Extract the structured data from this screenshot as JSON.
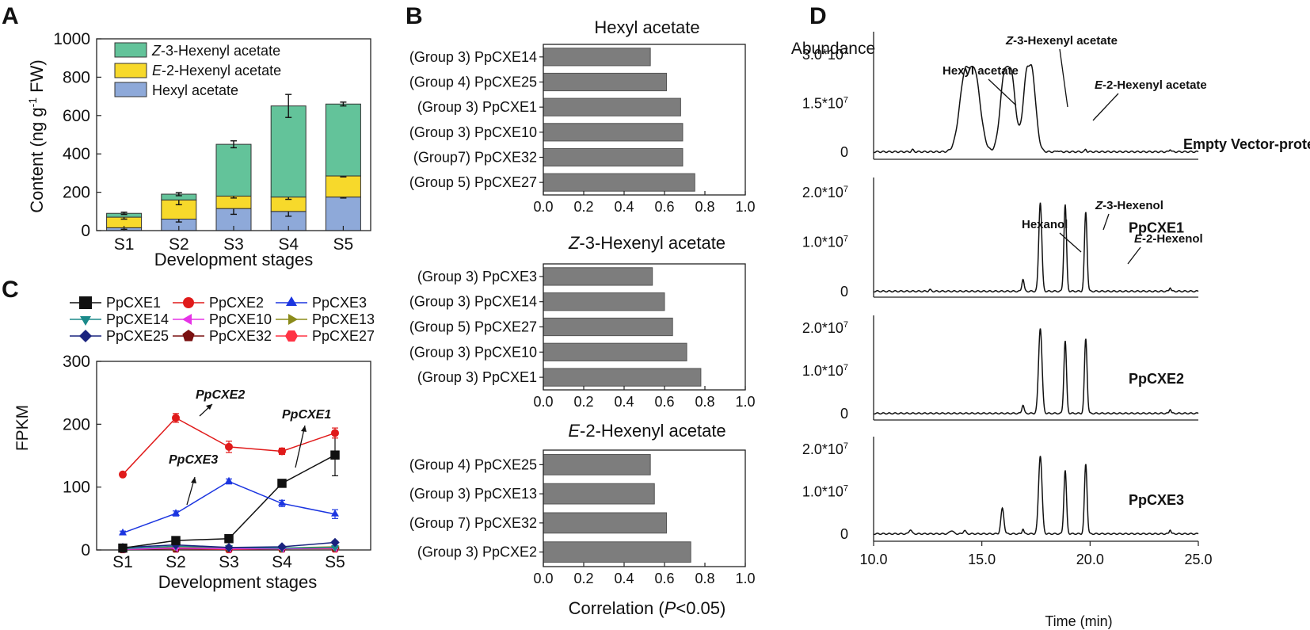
{
  "colors": {
    "z3": "#63c39a",
    "e2": "#f7d92b",
    "hexyl": "#8ea9d9",
    "bar_gray": "#7d7d7d"
  },
  "panels": {
    "A": "A",
    "B": "B",
    "C": "C",
    "D": "D"
  },
  "chart_data": [
    {
      "id": "A",
      "type": "bar",
      "stacked": true,
      "categories": [
        "S1",
        "S2",
        "S3",
        "S4",
        "S5"
      ],
      "series": [
        {
          "name": "Hexyl acetate",
          "values": [
            15,
            60,
            115,
            100,
            175
          ],
          "errors": [
            8,
            15,
            30,
            25,
            5
          ]
        },
        {
          "name": "E-2-Hexenyl acetate",
          "values": [
            55,
            100,
            65,
            75,
            110
          ],
          "errors": [
            10,
            25,
            10,
            12,
            5
          ]
        },
        {
          "name": "Z-3-Hexenyl acetate",
          "values": [
            20,
            30,
            270,
            475,
            375
          ],
          "errors": [
            6,
            8,
            18,
            60,
            10
          ]
        }
      ],
      "legend": [
        {
          "prefix": "Z",
          "rest": "-3-Hexenyl acetate"
        },
        {
          "prefix": "E",
          "rest": "-2-Hexenyl acetate"
        },
        {
          "prefix": "",
          "rest": "Hexyl acetate"
        }
      ],
      "xlabel": "Development stages",
      "ylabel_pre": "Content (ng g",
      "ylabel_sup": "-1",
      "ylabel_post": " FW)",
      "ylim": [
        0,
        1000
      ],
      "yticks": [
        "0",
        "200",
        "400",
        "600",
        "800",
        "1000"
      ]
    },
    {
      "id": "B",
      "type": "bar",
      "orientation": "horizontal",
      "xlabel_pre": "Correlation (",
      "xlabel_it": "P",
      "xlabel_post": "<0.05)",
      "xticks": [
        "0.0",
        "0.2",
        "0.4",
        "0.6",
        "0.8",
        "1.0"
      ],
      "xlim": [
        0,
        1
      ],
      "subplots": [
        {
          "title_it": "",
          "title": "Hexyl acetate",
          "categories": [
            "(Group 3) PpCXE14",
            "(Group 4) PpCXE25",
            "(Group 3) PpCXE1",
            "(Group 3) PpCXE10",
            "(Group7) PpCXE32",
            "(Group 5) PpCXE27"
          ],
          "values": [
            0.53,
            0.61,
            0.68,
            0.69,
            0.69,
            0.75
          ]
        },
        {
          "title_it": "Z",
          "title": "-3-Hexenyl acetate",
          "categories": [
            "(Group 3) PpCXE3",
            "(Group 3) PpCXE14",
            "(Group 5) PpCXE27",
            "(Group 3) PpCXE10",
            "(Group 3) PpCXE1"
          ],
          "values": [
            0.54,
            0.6,
            0.64,
            0.71,
            0.78
          ]
        },
        {
          "title_it": "E",
          "title": "-2-Hexenyl acetate",
          "categories": [
            "(Group 4) PpCXE25",
            "(Group 3) PpCXE13",
            "(Group 7) PpCXE32",
            "(Group 3) PpCXE2"
          ],
          "values": [
            0.53,
            0.55,
            0.61,
            0.73
          ]
        }
      ]
    },
    {
      "id": "C",
      "type": "line",
      "categories": [
        "S1",
        "S2",
        "S3",
        "S4",
        "S5"
      ],
      "ylabel": "FPKM",
      "xlabel": "Development stages",
      "ylim": [
        0,
        300
      ],
      "yticks": [
        "0",
        "100",
        "200",
        "300"
      ],
      "series": [
        {
          "name": "PpCXE1",
          "color": "#111111",
          "marker": "square",
          "values": [
            3,
            15,
            18,
            106,
            151
          ],
          "errors": [
            1,
            2,
            2,
            3,
            33
          ]
        },
        {
          "name": "PpCXE2",
          "color": "#e01a1a",
          "marker": "circle",
          "values": [
            120,
            210,
            164,
            157,
            186
          ],
          "errors": [
            2,
            7,
            9,
            5,
            8
          ]
        },
        {
          "name": "PpCXE3",
          "color": "#1b35e0",
          "marker": "triangle-up",
          "values": [
            27,
            58,
            109,
            74,
            57
          ],
          "errors": [
            3,
            4,
            4,
            5,
            7
          ]
        },
        {
          "name": "PpCXE14",
          "color": "#1b8a8a",
          "marker": "triangle-down",
          "values": [
            2,
            6,
            4,
            3,
            4
          ],
          "errors": [
            1,
            1,
            1,
            1,
            1
          ]
        },
        {
          "name": "PpCXE10",
          "color": "#e633e6",
          "marker": "triangle-left",
          "values": [
            1,
            3,
            2,
            2,
            3
          ],
          "errors": [
            1,
            1,
            1,
            1,
            1
          ]
        },
        {
          "name": "PpCXE13",
          "color": "#8b8b1a",
          "marker": "triangle-right",
          "values": [
            2,
            4,
            3,
            3,
            5
          ],
          "errors": [
            1,
            1,
            1,
            1,
            1
          ]
        },
        {
          "name": "PpCXE25",
          "color": "#1a237e",
          "marker": "diamond",
          "values": [
            4,
            8,
            4,
            5,
            12
          ],
          "errors": [
            1,
            1,
            1,
            1,
            2
          ]
        },
        {
          "name": "PpCXE32",
          "color": "#7a1010",
          "marker": "pentagon",
          "values": [
            1,
            2,
            2,
            2,
            3
          ],
          "errors": [
            1,
            1,
            1,
            1,
            1
          ]
        },
        {
          "name": "PpCXE27",
          "color": "#ff3344",
          "marker": "hexagon",
          "values": [
            1,
            2,
            1,
            2,
            2
          ],
          "errors": [
            1,
            1,
            1,
            1,
            1
          ]
        }
      ],
      "annotations": [
        "PpCXE2",
        "PpCXE1",
        "PpCXE3"
      ]
    },
    {
      "id": "D",
      "type": "line",
      "subtype": "chromatogram",
      "ylabel": "Abundance",
      "xlabel": "Time (min)",
      "xlim": [
        10,
        25
      ],
      "xticks": [
        "10.0",
        "15.0",
        "20.0",
        "25.0"
      ],
      "exp": "7",
      "traces": [
        {
          "name": "Empty Vector-protein",
          "yticks": [
            {
              "v": 0,
              "base": "0",
              "exp": ""
            },
            {
              "v": 1.5,
              "base": "1.5*10",
              "exp": "7"
            },
            {
              "v": 3.0,
              "base": "3.0*10",
              "exp": "7"
            }
          ],
          "ymax": 3.7,
          "peaks": [
            {
              "t": 11.8,
              "h": 0.06,
              "w": 0.05,
              "flat": 0
            },
            {
              "t": 14.45,
              "h": 2.6,
              "w": 0.28,
              "flat": 0.35
            },
            {
              "t": 16.2,
              "h": 2.6,
              "w": 0.22,
              "flat": 0.22
            },
            {
              "t": 17.2,
              "h": 2.65,
              "w": 0.2,
              "flat": 0.15
            },
            {
              "t": 18.5,
              "h": 0.04,
              "w": 0.04,
              "flat": 0
            },
            {
              "t": 19.8,
              "h": 0.07,
              "w": 0.04,
              "flat": 0
            },
            {
              "t": 23.7,
              "h": 0.08,
              "w": 0.04,
              "flat": 0
            }
          ],
          "labels": [
            {
              "text": "Hexyl acetate",
              "italic": ""
            },
            {
              "text": "-3-Hexenyl acetate",
              "italic": "Z"
            },
            {
              "text": "-2-Hexenyl acetate",
              "italic": "E"
            }
          ]
        },
        {
          "name": "PpCXE1",
          "yticks": [
            {
              "v": 0,
              "base": "0",
              "exp": ""
            },
            {
              "v": 1.0,
              "base": "1.0*10",
              "exp": "7"
            },
            {
              "v": 2.0,
              "base": "2.0*10",
              "exp": "7"
            }
          ],
          "ymax": 2.3,
          "peaks": [
            {
              "t": 12.6,
              "h": 0.03,
              "w": 0.05,
              "flat": 0
            },
            {
              "t": 16.9,
              "h": 0.25,
              "w": 0.05,
              "flat": 0
            },
            {
              "t": 17.7,
              "h": 1.8,
              "w": 0.07,
              "flat": 0
            },
            {
              "t": 18.85,
              "h": 1.75,
              "w": 0.06,
              "flat": 0
            },
            {
              "t": 19.8,
              "h": 1.6,
              "w": 0.06,
              "flat": 0
            },
            {
              "t": 23.7,
              "h": 0.08,
              "w": 0.04,
              "flat": 0
            }
          ],
          "labels": [
            {
              "text": "Hexanol",
              "italic": ""
            },
            {
              "text": "-3-Hexenol",
              "italic": "Z"
            },
            {
              "text": "-2-Hexenol",
              "italic": "E"
            }
          ]
        },
        {
          "name": "PpCXE2",
          "yticks": [
            {
              "v": 0,
              "base": "0",
              "exp": ""
            },
            {
              "v": 1.0,
              "base": "1.0*10",
              "exp": "7"
            },
            {
              "v": 2.0,
              "base": "2.0*10",
              "exp": "7"
            }
          ],
          "ymax": 2.3,
          "peaks": [
            {
              "t": 16.9,
              "h": 0.2,
              "w": 0.05,
              "flat": 0
            },
            {
              "t": 17.7,
              "h": 2.0,
              "w": 0.08,
              "flat": 0
            },
            {
              "t": 18.85,
              "h": 1.7,
              "w": 0.06,
              "flat": 0
            },
            {
              "t": 19.8,
              "h": 1.75,
              "w": 0.06,
              "flat": 0
            },
            {
              "t": 23.7,
              "h": 0.1,
              "w": 0.04,
              "flat": 0
            }
          ],
          "labels": []
        },
        {
          "name": "PpCXE3",
          "yticks": [
            {
              "v": 0,
              "base": "0",
              "exp": ""
            },
            {
              "v": 1.0,
              "base": "1.0*10",
              "exp": "7"
            },
            {
              "v": 2.0,
              "base": "2.0*10",
              "exp": "7"
            }
          ],
          "ymax": 2.3,
          "peaks": [
            {
              "t": 11.7,
              "h": 0.1,
              "w": 0.06,
              "flat": 0
            },
            {
              "t": 13.6,
              "h": 0.08,
              "w": 0.08,
              "flat": 0
            },
            {
              "t": 14.2,
              "h": 0.08,
              "w": 0.06,
              "flat": 0
            },
            {
              "t": 15.95,
              "h": 0.6,
              "w": 0.07,
              "flat": 0
            },
            {
              "t": 16.9,
              "h": 0.12,
              "w": 0.04,
              "flat": 0
            },
            {
              "t": 17.7,
              "h": 1.85,
              "w": 0.08,
              "flat": 0
            },
            {
              "t": 18.85,
              "h": 1.5,
              "w": 0.06,
              "flat": 0
            },
            {
              "t": 19.8,
              "h": 1.65,
              "w": 0.06,
              "flat": 0
            },
            {
              "t": 23.7,
              "h": 0.1,
              "w": 0.04,
              "flat": 0
            }
          ],
          "labels": []
        }
      ]
    }
  ]
}
